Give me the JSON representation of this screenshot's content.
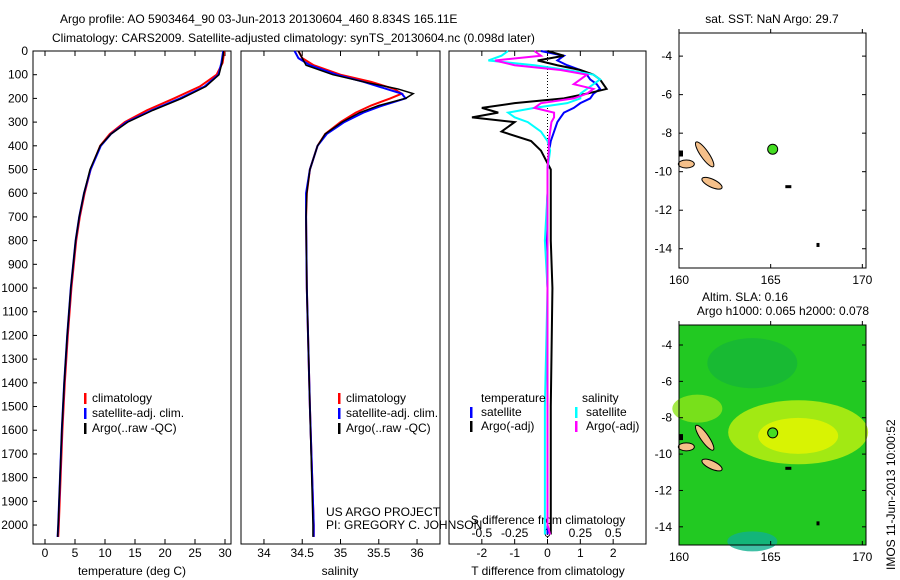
{
  "titles": {
    "line1": "Argo profile: AO 5903464_90 03-Jun-2013 20130604_460 8.834S 165.11E",
    "line2": "Climatology: CARS2009. Satellite-adjusted climatology: synTS_20130604.nc (0.098d later)"
  },
  "credit": {
    "line1": "US ARGO PROJECT",
    "line2": "PI: GREGORY C. JOHNSON"
  },
  "side_stamp": "IMOS 11-Jun-2013 10:00:52",
  "colors": {
    "climatology": "#ff0000",
    "satellite": "#0000ff",
    "argo": "#000000",
    "sal_satellite": "#00ffff",
    "sal_argo": "#ff00ff",
    "land": "#f5c08a"
  },
  "chart_data": [
    {
      "type": "line",
      "name": "temperature",
      "xlabel": "temperature (deg C)",
      "ylabel": "",
      "xlim": [
        -2,
        31
      ],
      "ylim": [
        2080,
        0
      ],
      "xticks": [
        "0",
        "5",
        "10",
        "15",
        "20",
        "25",
        "30"
      ],
      "yticks": [
        "0",
        "100",
        "200",
        "300",
        "400",
        "500",
        "600",
        "700",
        "800",
        "900",
        "1000",
        "1100",
        "1200",
        "1300",
        "1400",
        "1500",
        "1600",
        "1700",
        "1800",
        "1900",
        "2000"
      ],
      "depth": [
        0,
        50,
        100,
        150,
        200,
        250,
        300,
        350,
        400,
        500,
        600,
        700,
        800,
        1000,
        1200,
        1400,
        1600,
        1800,
        2000,
        2050
      ],
      "series": [
        {
          "name": "climatology",
          "values": [
            29.9,
            29.6,
            28.6,
            25.8,
            21.5,
            17.0,
            13.3,
            10.8,
            9.2,
            7.6,
            6.6,
            5.8,
            5.2,
            4.4,
            3.8,
            3.3,
            2.9,
            2.6,
            2.3,
            2.2
          ]
        },
        {
          "name": "satellite-adj. clim.",
          "values": [
            29.7,
            29.4,
            28.9,
            26.6,
            22.5,
            17.8,
            13.6,
            11.0,
            9.3,
            7.6,
            6.5,
            5.7,
            5.1,
            4.3,
            3.7,
            3.2,
            2.8,
            2.5,
            2.2,
            2.1
          ]
        },
        {
          "name": "Argo(..raw -QC)",
          "values": [
            29.8,
            29.5,
            29.0,
            26.8,
            22.8,
            18.0,
            13.8,
            11.0,
            9.2,
            7.5,
            6.5,
            5.7,
            5.1,
            4.3,
            3.7,
            3.2,
            2.8,
            2.5,
            2.2,
            2.1
          ]
        }
      ],
      "legend": [
        "climatology",
        "satellite-adj. clim.",
        "Argo(..raw -QC)"
      ]
    },
    {
      "type": "line",
      "name": "salinity",
      "xlabel": "salinity",
      "xlim": [
        33.7,
        36.3
      ],
      "ylim": [
        2080,
        0
      ],
      "xticks": [
        "34",
        "34.5",
        "35",
        "35.5",
        "36"
      ],
      "depth": [
        0,
        30,
        60,
        100,
        130,
        160,
        180,
        200,
        230,
        260,
        300,
        350,
        400,
        500,
        600,
        700,
        1000,
        1500,
        2000,
        2050
      ],
      "series": [
        {
          "name": "climatology",
          "values": [
            34.45,
            34.5,
            34.65,
            35.0,
            35.4,
            35.7,
            35.8,
            35.65,
            35.4,
            35.2,
            35.0,
            34.8,
            34.7,
            34.6,
            34.56,
            34.55,
            34.56,
            34.6,
            34.65,
            34.65
          ]
        },
        {
          "name": "satellite-adj. clim.",
          "values": [
            34.4,
            34.45,
            34.6,
            34.95,
            35.3,
            35.6,
            35.8,
            35.85,
            35.55,
            35.3,
            35.05,
            34.82,
            34.7,
            34.6,
            34.55,
            34.55,
            34.56,
            34.6,
            34.65,
            34.65
          ]
        },
        {
          "name": "Argo(..raw -QC)",
          "values": [
            34.45,
            34.5,
            34.55,
            34.9,
            35.3,
            35.75,
            35.95,
            35.85,
            35.5,
            35.25,
            35.02,
            34.8,
            34.7,
            34.6,
            34.56,
            34.55,
            34.56,
            34.6,
            34.64,
            34.64
          ]
        }
      ],
      "legend": [
        "climatology",
        "satellite-adj. clim.",
        "Argo(..raw -QC)"
      ]
    },
    {
      "type": "line",
      "name": "differences",
      "xlabel": "T difference from climatology",
      "xlabel2": "S difference from climatology",
      "xlim": [
        -3,
        3
      ],
      "ylim": [
        2080,
        0
      ],
      "xticks": [
        "-2",
        "-1",
        "0",
        "1",
        "2"
      ],
      "xticks2": [
        "-0.5",
        "-0.25",
        "0",
        "0.25",
        "0.5"
      ],
      "depth": [
        0,
        20,
        40,
        60,
        80,
        100,
        120,
        140,
        160,
        180,
        200,
        220,
        240,
        260,
        280,
        300,
        340,
        380,
        420,
        500,
        600,
        800,
        1000,
        1500,
        2000,
        2040
      ],
      "series": [
        {
          "name": "temperature satellite",
          "values": [
            -0.2,
            0.5,
            0.3,
            0.6,
            1.0,
            1.2,
            1.3,
            1.5,
            1.6,
            1.4,
            1.3,
            1.0,
            0.8,
            0.5,
            0.4,
            0.3,
            0.2,
            0.1,
            0.05,
            0,
            0,
            -0.05,
            0,
            0,
            0,
            0
          ]
        },
        {
          "name": "temperature Argo(-adj)",
          "values": [
            0,
            0.5,
            -0.3,
            0.3,
            1.0,
            1.4,
            1.6,
            1.7,
            1.8,
            1.2,
            0.5,
            -1.0,
            -2.0,
            -1.5,
            -2.3,
            -1.0,
            -1.4,
            -0.5,
            -0.2,
            0.1,
            0.1,
            0.1,
            0.15,
            0.1,
            0.1,
            0.1
          ]
        },
        {
          "name": "salinity satellite",
          "values": [
            -0.3,
            -0.35,
            -0.45,
            -0.1,
            0.15,
            0.35,
            0.4,
            0.35,
            0.3,
            0.25,
            0.25,
            0.15,
            -0.1,
            -0.3,
            -0.25,
            -0.15,
            -0.05,
            0,
            0.02,
            0,
            0,
            -0.02,
            0,
            -0.02,
            -0.02,
            -0.02
          ]
        },
        {
          "name": "salinity Argo(-adj)",
          "values": [
            -0.1,
            -0.05,
            -0.4,
            -0.25,
            0.1,
            0.3,
            0.25,
            0.2,
            0.35,
            0.3,
            0.2,
            -0.05,
            -0.1,
            0.05,
            0.05,
            0.03,
            0.02,
            0.01,
            0.01,
            0,
            0,
            0,
            0,
            0,
            0,
            0.02
          ]
        }
      ],
      "legend": {
        "temperature_title": "temperature",
        "salinity_title": "salinity",
        "items": [
          "satellite",
          "Argo(-adj)",
          "satellite",
          "Argo(-adj)"
        ]
      }
    },
    {
      "type": "map",
      "name": "sst",
      "title": "sat. SST: NaN Argo: 29.7",
      "xlim": [
        160,
        170.2
      ],
      "ylim": [
        -15,
        -2.8
      ],
      "xticks": [
        "160",
        "165",
        "170"
      ],
      "yticks": [
        "-4",
        "-6",
        "-8",
        "-10",
        "-12",
        "-14"
      ],
      "point": [
        165.11,
        -8.834
      ]
    },
    {
      "type": "map",
      "name": "sla",
      "title": "Altim. SLA: 0.16",
      "subtitle": "Argo h1000: 0.065 h2000: 0.078",
      "xlim": [
        160,
        170.2
      ],
      "ylim": [
        -15,
        -2.9
      ],
      "xticks": [
        "160",
        "165",
        "170"
      ],
      "yticks": [
        "-4",
        "-6",
        "-8",
        "-10",
        "-12",
        "-14"
      ],
      "point": [
        165.11,
        -8.834
      ]
    }
  ]
}
